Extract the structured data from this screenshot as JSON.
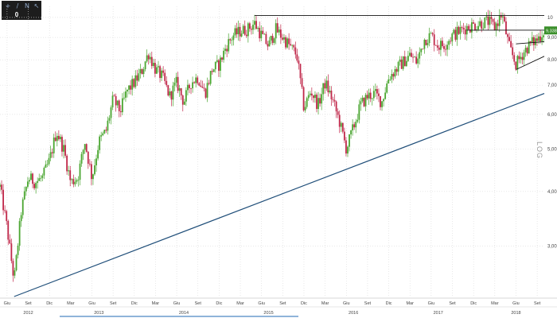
{
  "toolbar": {
    "buttons": [
      {
        "name": "plus-icon",
        "glyph": "+"
      },
      {
        "name": "draw-line-icon",
        "glyph": "/"
      },
      {
        "name": "text-tool-icon",
        "glyph": "N"
      },
      {
        "name": "pointer-icon",
        "glyph": "↖"
      }
    ],
    "count": "0"
  },
  "scale_label": "LOG",
  "colors": {
    "up": "#49a52f",
    "down": "#c0284a",
    "support_line": "#1f4e79",
    "resistance_line": "#111111",
    "price_badge": "#3a8f2a",
    "grid": "#d9d9d9"
  },
  "chart_data": {
    "type": "candlestick",
    "y_scale": "log",
    "ylim": [
      2.3,
      10.6
    ],
    "y_ticks": [
      {
        "value": 3.0,
        "label": "3,00"
      },
      {
        "value": 4.0,
        "label": "4,00"
      },
      {
        "value": 5.0,
        "label": "5,00"
      },
      {
        "value": 6.0,
        "label": "6,00"
      },
      {
        "value": 7.0,
        "label": "7,00"
      },
      {
        "value": 8.0,
        "label": "8,00"
      },
      {
        "value": 9.0,
        "label": "9,00"
      },
      {
        "value": 10.0,
        "label": "10"
      }
    ],
    "last_price": {
      "value": 9.338,
      "label": "9,338"
    },
    "x_start": "2012-05",
    "x_end": "2018-10",
    "x_ticks": [
      {
        "date": "2012-06",
        "label": "Giu"
      },
      {
        "date": "2012-09",
        "label": "Set"
      },
      {
        "date": "2012-12",
        "label": "Dic"
      },
      {
        "date": "2013-03",
        "label": "Mar"
      },
      {
        "date": "2013-06",
        "label": "Giu"
      },
      {
        "date": "2013-09",
        "label": "Set"
      },
      {
        "date": "2013-12",
        "label": "Dic"
      },
      {
        "date": "2014-03",
        "label": "Mar"
      },
      {
        "date": "2014-06",
        "label": "Giu"
      },
      {
        "date": "2014-09",
        "label": "Set"
      },
      {
        "date": "2014-12",
        "label": "Dic"
      },
      {
        "date": "2015-03",
        "label": "Mar"
      },
      {
        "date": "2015-06",
        "label": "Giu"
      },
      {
        "date": "2015-09",
        "label": "Set"
      },
      {
        "date": "2015-12",
        "label": "Dic"
      },
      {
        "date": "2016-03",
        "label": "Mar"
      },
      {
        "date": "2016-06",
        "label": "Giu"
      },
      {
        "date": "2016-09",
        "label": "Set"
      },
      {
        "date": "2016-12",
        "label": "Dic"
      },
      {
        "date": "2017-03",
        "label": "Mar"
      },
      {
        "date": "2017-06",
        "label": "Giu"
      },
      {
        "date": "2017-09",
        "label": "Set"
      },
      {
        "date": "2017-12",
        "label": "Dic"
      },
      {
        "date": "2018-03",
        "label": "Mar"
      },
      {
        "date": "2018-06",
        "label": "Giu"
      },
      {
        "date": "2018-09",
        "label": "Set"
      }
    ],
    "years": [
      {
        "date": "2012-09",
        "label": "2012"
      },
      {
        "date": "2013-07",
        "label": "2013"
      },
      {
        "date": "2014-07",
        "label": "2014"
      },
      {
        "date": "2015-07",
        "label": "2015"
      },
      {
        "date": "2016-07",
        "label": "2016"
      },
      {
        "date": "2017-07",
        "label": "2017"
      },
      {
        "date": "2018-06",
        "label": "2018"
      }
    ],
    "price_path": [
      [
        "2012-05",
        4.1
      ],
      [
        "2012-06",
        3.3
      ],
      [
        "2012-07",
        2.5
      ],
      [
        "2012-08",
        3.6
      ],
      [
        "2012-09",
        4.3
      ],
      [
        "2012-10",
        4.2
      ],
      [
        "2012-11",
        4.3
      ],
      [
        "2012-12",
        4.7
      ],
      [
        "2013-01",
        5.5
      ],
      [
        "2013-02",
        5.0
      ],
      [
        "2013-03",
        4.2
      ],
      [
        "2013-04",
        4.3
      ],
      [
        "2013-05",
        5.2
      ],
      [
        "2013-06",
        4.3
      ],
      [
        "2013-07",
        5.2
      ],
      [
        "2013-08",
        5.5
      ],
      [
        "2013-09",
        6.5
      ],
      [
        "2013-10",
        6.1
      ],
      [
        "2013-11",
        6.8
      ],
      [
        "2013-12",
        7.1
      ],
      [
        "2014-01",
        7.5
      ],
      [
        "2014-02",
        8.3
      ],
      [
        "2014-03",
        7.6
      ],
      [
        "2014-04",
        7.3
      ],
      [
        "2014-05",
        6.6
      ],
      [
        "2014-06",
        7.1
      ],
      [
        "2014-07",
        6.4
      ],
      [
        "2014-08",
        7.1
      ],
      [
        "2014-09",
        7.3
      ],
      [
        "2014-10",
        6.7
      ],
      [
        "2014-11",
        7.6
      ],
      [
        "2014-12",
        7.8
      ],
      [
        "2015-01",
        8.6
      ],
      [
        "2015-02",
        9.1
      ],
      [
        "2015-03",
        9.3
      ],
      [
        "2015-04",
        9.4
      ],
      [
        "2015-05",
        9.7
      ],
      [
        "2015-06",
        9.1
      ],
      [
        "2015-07",
        8.6
      ],
      [
        "2015-08",
        9.4
      ],
      [
        "2015-09",
        9.0
      ],
      [
        "2015-10",
        8.6
      ],
      [
        "2015-11",
        8.2
      ],
      [
        "2015-12",
        6.2
      ],
      [
        "2016-01",
        6.8
      ],
      [
        "2016-02",
        6.3
      ],
      [
        "2016-03",
        7.1
      ],
      [
        "2016-04",
        6.5
      ],
      [
        "2016-05",
        5.8
      ],
      [
        "2016-06",
        5.0
      ],
      [
        "2016-07",
        5.6
      ],
      [
        "2016-08",
        6.3
      ],
      [
        "2016-09",
        6.6
      ],
      [
        "2016-10",
        6.7
      ],
      [
        "2016-11",
        6.4
      ],
      [
        "2016-12",
        7.3
      ],
      [
        "2017-01",
        7.6
      ],
      [
        "2017-02",
        7.9
      ],
      [
        "2017-03",
        8.2
      ],
      [
        "2017-04",
        7.9
      ],
      [
        "2017-05",
        8.9
      ],
      [
        "2017-06",
        9.1
      ],
      [
        "2017-07",
        8.6
      ],
      [
        "2017-08",
        8.7
      ],
      [
        "2017-09",
        9.1
      ],
      [
        "2017-10",
        9.3
      ],
      [
        "2017-11",
        9.5
      ],
      [
        "2017-12",
        9.6
      ],
      [
        "2018-01",
        9.7
      ],
      [
        "2018-02",
        9.8
      ],
      [
        "2018-03",
        9.5
      ],
      [
        "2018-04",
        10.2
      ],
      [
        "2018-05",
        8.6
      ],
      [
        "2018-06",
        7.8
      ],
      [
        "2018-07",
        8.3
      ],
      [
        "2018-08",
        8.7
      ],
      [
        "2018-09",
        8.9
      ],
      [
        "2018-10",
        9.338
      ]
    ],
    "trendlines": [
      {
        "kind": "support",
        "from": [
          "2012-07",
          2.3
        ],
        "to": [
          "2018-10",
          6.7
        ]
      },
      {
        "kind": "resistance",
        "from": [
          "2015-05",
          10.1
        ],
        "to": [
          "2018-10",
          10.1
        ]
      },
      {
        "kind": "resistance",
        "from": [
          "2017-11",
          9.35
        ],
        "to": [
          "2018-10",
          9.35
        ]
      },
      {
        "kind": "triangle-upper",
        "from": [
          "2018-06",
          8.7
        ],
        "to": [
          "2018-10",
          8.8
        ]
      },
      {
        "kind": "triangle-lower",
        "from": [
          "2018-06",
          7.6
        ],
        "to": [
          "2018-10",
          8.15
        ]
      }
    ]
  }
}
